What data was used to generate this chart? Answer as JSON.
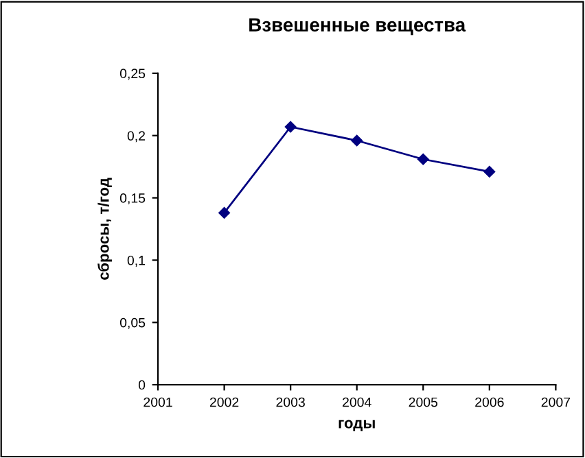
{
  "chart_data": {
    "type": "line",
    "title": "Взвешенные вещества",
    "xlabel": "годы",
    "ylabel": "сбросы, т/год",
    "x": [
      2002,
      2003,
      2004,
      2005,
      2006
    ],
    "series": [
      {
        "color": "#000080",
        "values": [
          0.138,
          0.207,
          0.196,
          0.181,
          0.171
        ]
      }
    ],
    "xlim": [
      2001,
      2007
    ],
    "xticks": [
      2001,
      2002,
      2003,
      2004,
      2005,
      2006,
      2007
    ],
    "ylim": [
      0,
      0.25
    ],
    "yticks": [
      {
        "value": 0,
        "label": "0"
      },
      {
        "value": 0.05,
        "label": "0,05"
      },
      {
        "value": 0.1,
        "label": "0,1"
      },
      {
        "value": 0.15,
        "label": "0,15"
      },
      {
        "value": 0.2,
        "label": "0,2"
      },
      {
        "value": 0.25,
        "label": "0,25"
      }
    ],
    "grid": false,
    "marker": "diamond",
    "line_style": "solid"
  }
}
